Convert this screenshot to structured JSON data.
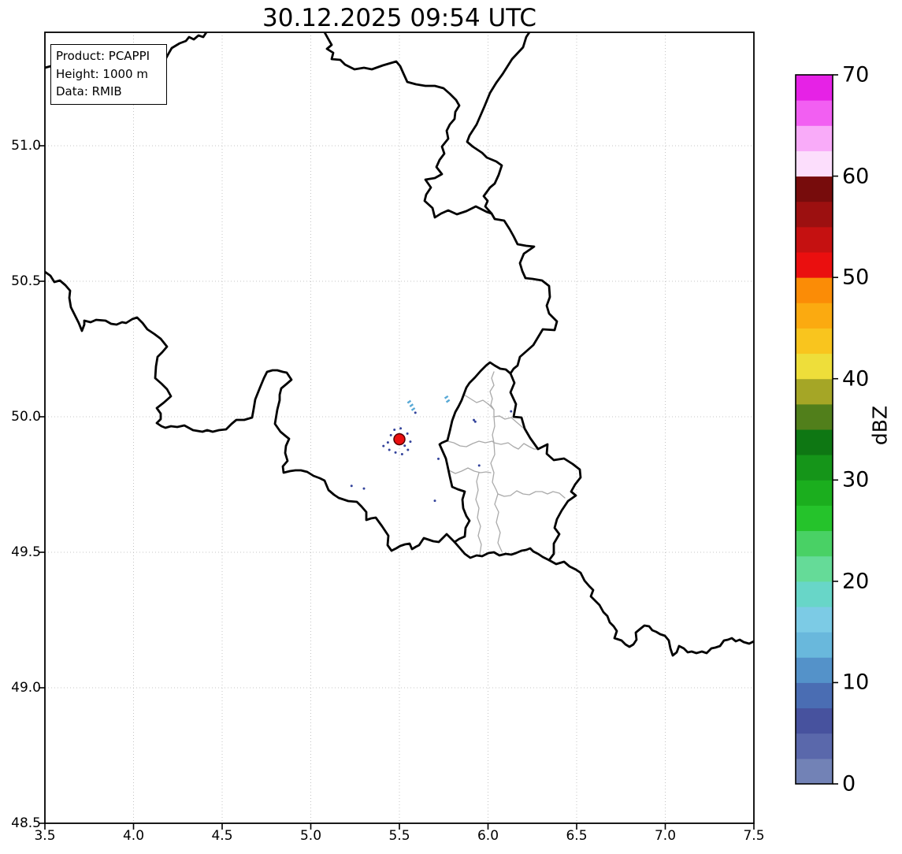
{
  "title": "30.12.2025 09:54 UTC",
  "info_box": {
    "product_line": "Product: PCAPPI",
    "height_line": "Height: 1000 m",
    "data_line": "Data: RMIB"
  },
  "axes": {
    "x_tick_labels": [
      "3.5",
      "4.0",
      "4.5",
      "5.0",
      "5.5",
      "6.0",
      "6.5",
      "7.0",
      "7.5"
    ],
    "x_tick_values": [
      3.5,
      4.0,
      4.5,
      5.0,
      5.5,
      6.0,
      6.5,
      7.0,
      7.5
    ],
    "y_tick_labels": [
      "48.5",
      "49.0",
      "49.5",
      "50.0",
      "50.5",
      "51.0"
    ],
    "y_tick_values": [
      48.5,
      49.0,
      49.5,
      50.0,
      50.5,
      51.0
    ]
  },
  "chart_data": {
    "type": "map",
    "subtype": "weather-radar-reflectivity-pcappi",
    "title": "30.12.2025 09:54 UTC",
    "product": "PCAPPI",
    "height_m": 1000,
    "data_source": "RMIB",
    "xlim": [
      3.5,
      7.5
    ],
    "ylim": [
      48.5,
      51.42
    ],
    "grid": "dotted light-gray every 0.5 degree",
    "region": "Belgium / Luxembourg / surrounding borders (black national borders, gray Luxembourg cantons)",
    "colorbar": {
      "label": "dBZ",
      "vmin": 0,
      "vmax": 70,
      "band_step": 2.5,
      "tick_values": [
        0,
        10,
        20,
        30,
        40,
        50,
        60,
        70
      ],
      "tick_labels": [
        "0",
        "10",
        "20",
        "30",
        "40",
        "50",
        "60",
        "70"
      ],
      "band_colors_bottom_to_top": [
        "#7282b6",
        "#5a68ab",
        "#47529e",
        "#4a6db3",
        "#5492c9",
        "#69b8dc",
        "#7ccbe5",
        "#68d6c8",
        "#65db98",
        "#49d165",
        "#25c32b",
        "#1bae1e",
        "#159519",
        "#0e7713",
        "#517f1b",
        "#a5a626",
        "#eede3a",
        "#f9c51e",
        "#fbaa10",
        "#fb8c06",
        "#ea0f0f",
        "#c51111",
        "#9c1010",
        "#770c0c",
        "#fcdefc",
        "#f9abf9",
        "#f25ff2",
        "#e622e6"
      ]
    },
    "echoes": {
      "site_marker": {
        "lon": 5.5,
        "lat": 49.917,
        "dbz": 52,
        "color": "#ea0f0f",
        "edge_color": "#550000",
        "radius_px": 7
      },
      "speck_color": "#33439b",
      "dash_color": "#58a9d6",
      "cells": [
        {
          "lon": 5.555,
          "lat": 50.055,
          "kind": "dash",
          "dbz": 10
        },
        {
          "lon": 5.568,
          "lat": 50.042,
          "kind": "dash",
          "dbz": 10
        },
        {
          "lon": 5.578,
          "lat": 50.028,
          "kind": "dash",
          "dbz": 10
        },
        {
          "lon": 5.59,
          "lat": 50.015,
          "kind": "speck",
          "dbz": 5
        },
        {
          "lon": 5.765,
          "lat": 50.072,
          "kind": "dash",
          "dbz": 10
        },
        {
          "lon": 5.774,
          "lat": 50.058,
          "kind": "dash",
          "dbz": 10
        },
        {
          "lon": 5.92,
          "lat": 49.988,
          "kind": "speck",
          "dbz": 2
        },
        {
          "lon": 5.928,
          "lat": 49.982,
          "kind": "speck",
          "dbz": 2
        },
        {
          "lon": 5.435,
          "lat": 49.905,
          "kind": "speck",
          "dbz": 2
        },
        {
          "lon": 5.452,
          "lat": 49.932,
          "kind": "speck",
          "dbz": 2
        },
        {
          "lon": 5.472,
          "lat": 49.952,
          "kind": "speck",
          "dbz": 2
        },
        {
          "lon": 5.507,
          "lat": 49.957,
          "kind": "speck",
          "dbz": 2
        },
        {
          "lon": 5.545,
          "lat": 49.938,
          "kind": "speck",
          "dbz": 2
        },
        {
          "lon": 5.562,
          "lat": 49.908,
          "kind": "speck",
          "dbz": 2
        },
        {
          "lon": 5.548,
          "lat": 49.878,
          "kind": "speck",
          "dbz": 2
        },
        {
          "lon": 5.515,
          "lat": 49.862,
          "kind": "speck",
          "dbz": 2
        },
        {
          "lon": 5.478,
          "lat": 49.868,
          "kind": "speck",
          "dbz": 2
        },
        {
          "lon": 5.443,
          "lat": 49.878,
          "kind": "speck",
          "dbz": 2
        },
        {
          "lon": 5.41,
          "lat": 49.892,
          "kind": "speck",
          "dbz": 2
        },
        {
          "lon": 5.53,
          "lat": 49.893,
          "kind": "speck",
          "dbz": 2
        },
        {
          "lon": 5.23,
          "lat": 49.745,
          "kind": "speck",
          "dbz": 2
        },
        {
          "lon": 5.3,
          "lat": 49.735,
          "kind": "speck",
          "dbz": 2
        },
        {
          "lon": 5.72,
          "lat": 49.845,
          "kind": "speck",
          "dbz": 2
        },
        {
          "lon": 5.95,
          "lat": 49.82,
          "kind": "speck",
          "dbz": 2
        },
        {
          "lon": 5.7,
          "lat": 49.69,
          "kind": "speck",
          "dbz": 2
        },
        {
          "lon": 6.13,
          "lat": 50.02,
          "kind": "speck",
          "dbz": 2
        }
      ]
    }
  }
}
